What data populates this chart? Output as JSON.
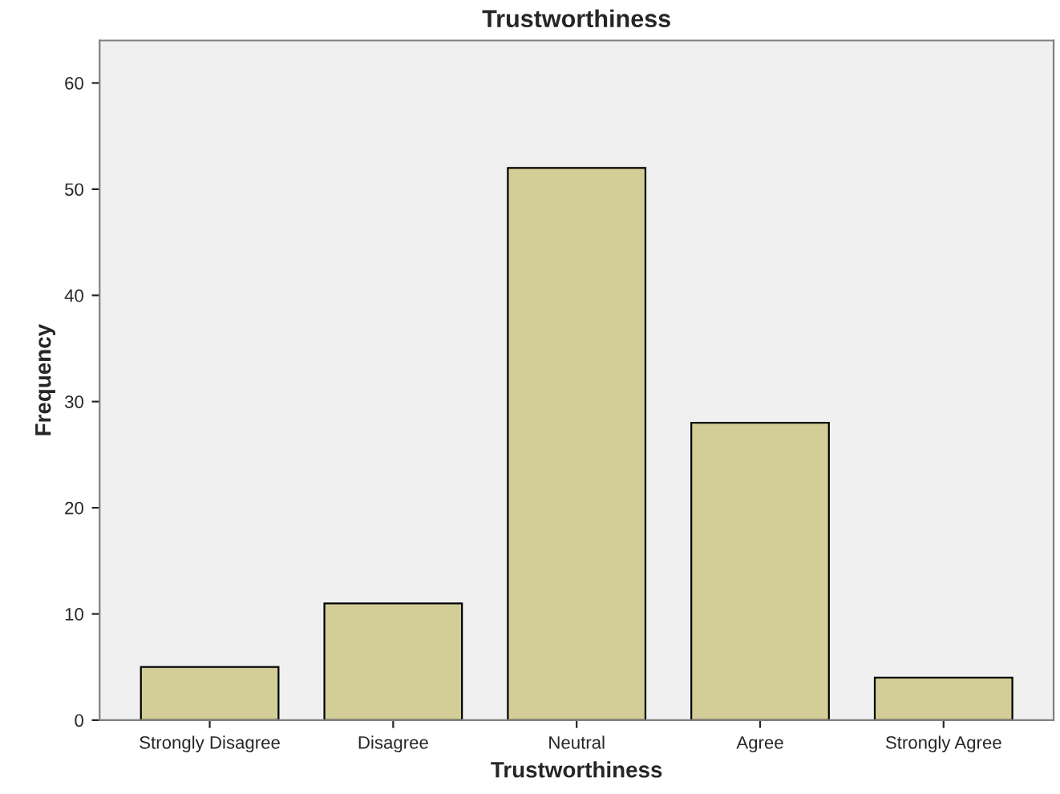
{
  "chart_data": {
    "type": "bar",
    "title": "Trustworthiness",
    "xlabel": "Trustworthiness",
    "ylabel": "Frequency",
    "categories": [
      "Strongly Disagree",
      "Disagree",
      "Neutral",
      "Agree",
      "Strongly Agree"
    ],
    "values": [
      5,
      11,
      52,
      28,
      4
    ],
    "color": "#d3ce97",
    "ylim": [
      0,
      64
    ],
    "yticks": [
      0,
      10,
      20,
      30,
      40,
      50,
      60
    ],
    "grid": false
  }
}
